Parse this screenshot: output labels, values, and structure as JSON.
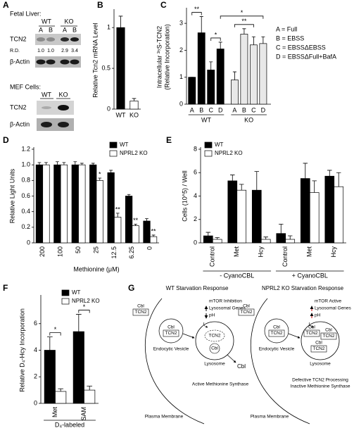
{
  "panel_labels": [
    "A",
    "B",
    "C",
    "D",
    "E",
    "F",
    "G"
  ],
  "panel_a": {
    "fetal_liver": {
      "title": "Fetal Liver:",
      "genotypes": [
        "WT",
        "KO"
      ],
      "lanes": [
        "A",
        "B",
        "A",
        "B"
      ],
      "rows": [
        "TCN2",
        "β-Actin"
      ],
      "rd_label": "R.D.",
      "rd_values": [
        "1.0",
        "1.0",
        "2.9",
        "3.4"
      ]
    },
    "mef": {
      "title": "MEF Cells:",
      "genotypes": [
        "WT",
        "KO"
      ],
      "rows": [
        "TCN2",
        "β-Actin"
      ]
    }
  },
  "chart_data": [
    {
      "type": "bar",
      "ylabel": "Relative Tcn2 mRNA Level",
      "categories": [
        "WT",
        "KO"
      ],
      "values": [
        1,
        0.1
      ],
      "errors": [
        0.14,
        0.03
      ],
      "colors": [
        "#000000",
        "#ffffff"
      ],
      "ylim": [
        0,
        1.2
      ],
      "yticks": [
        0,
        0.5,
        1
      ]
    },
    {
      "type": "grouped_bar",
      "group_by": "series",
      "ylabel": [
        "Intracellular ³⁵S-TCN2",
        "(Relative Incorporation)"
      ],
      "categories": [
        "A",
        "B",
        "C",
        "D"
      ],
      "series": [
        {
          "name": "WT",
          "color": "#000000",
          "values": [
            1,
            2.65,
            1.27,
            2.05
          ],
          "errors": [
            0,
            0.6,
            0.3,
            0.25
          ]
        },
        {
          "name": "KO",
          "color": "#e8e8e8",
          "values": [
            0.9,
            2.6,
            2.2,
            2.25
          ],
          "errors": [
            0.3,
            0.2,
            0.3,
            0.25
          ]
        }
      ],
      "ylim": [
        0,
        3.5
      ],
      "yticks": [
        0,
        1,
        2,
        3
      ],
      "notes": [
        "A = Full",
        "B = EBSS",
        "C = EBSSΔEBSS",
        "D = EBSSΔFull+BafA"
      ],
      "annotations": [
        {
          "text": "**",
          "bars": [
            [
              0,
              0
            ],
            [
              0,
              1
            ]
          ]
        },
        {
          "text": "*",
          "bars": [
            [
              0,
              2
            ],
            [
              0,
              3
            ]
          ]
        },
        {
          "text": "**",
          "bars": [
            [
              1,
              0
            ],
            [
              1,
              2
            ]
          ]
        },
        {
          "text": "*",
          "bars": [
            [
              0,
              3
            ],
            [
              1,
              3
            ]
          ]
        }
      ]
    },
    {
      "type": "grouped_bar",
      "group_by": "category",
      "ylabel": "Relative Light Units",
      "xlabel": "Methionine (μM)",
      "categories": [
        "200",
        "100",
        "50",
        "25",
        "12.5",
        "6.25",
        "0"
      ],
      "series": [
        {
          "name": "WT",
          "color": "#000000",
          "values": [
            1,
            1,
            1,
            1,
            0.9,
            0.6,
            0.28
          ],
          "errors": [
            0.03,
            0.04,
            0.04,
            0.02,
            0.03,
            0.02,
            0.03
          ]
        },
        {
          "name": "NPRL2 KO",
          "color": "#ffffff",
          "values": [
            1,
            1,
            1,
            0.8,
            0.33,
            0.22,
            0.08
          ],
          "errors": [
            0.03,
            0.03,
            0.02,
            0.03,
            0.05,
            0.02,
            0.02
          ]
        }
      ],
      "ylim": [
        0,
        1.2
      ],
      "yticks": [
        0,
        0.2,
        0.4,
        0.6,
        0.8,
        {
          "value": 1,
          "label": "1.0"
        },
        1.2
      ],
      "legend": "upper right",
      "annotations": [
        {
          "text": "*",
          "bars": [
            [
              1,
              3
            ]
          ]
        },
        {
          "text": "**",
          "bars": [
            [
              1,
              4
            ]
          ]
        },
        {
          "text": "**",
          "bars": [
            [
              1,
              5
            ]
          ]
        },
        {
          "text": "**",
          "bars": [
            [
              1,
              6
            ]
          ]
        }
      ]
    },
    {
      "type": "grouped_bar",
      "group_by": "category",
      "ylabel": "Cells (10^5) / Well",
      "categories": [
        "Control",
        "Met",
        "Hcy",
        "Control",
        "Met",
        "Hcy"
      ],
      "groups": [
        "- CyanoCBL",
        "+ CyanoCBL"
      ],
      "series": [
        {
          "name": "WT",
          "color": "#000000",
          "values": [
            0.6,
            5.3,
            4.5,
            0.8,
            5.5,
            5.7
          ],
          "errors": [
            0.3,
            0.5,
            1.6,
            0.8,
            1.3,
            0.5
          ]
        },
        {
          "name": "NPRL2 KO",
          "color": "#ffffff",
          "values": [
            0.3,
            4.5,
            0.3,
            0.3,
            4.3,
            4.8
          ],
          "errors": [
            0.15,
            0.5,
            0.2,
            0.3,
            1.0,
            1.2
          ]
        }
      ],
      "ylim": [
        0,
        8
      ],
      "yticks": [
        0,
        2,
        4,
        6,
        8
      ],
      "legend": "upper left"
    },
    {
      "type": "grouped_bar",
      "group_by": "category",
      "ylabel": "Relative D₄-Hcy Incorporation",
      "categories": [
        "Met",
        "SAM"
      ],
      "groups": [
        "D₄-labeled"
      ],
      "series": [
        {
          "name": "WT",
          "color": "#000000",
          "values": [
            4,
            5.4
          ],
          "errors": [
            1,
            1.3
          ]
        },
        {
          "name": "NPRL2 KO",
          "color": "#ffffff",
          "values": [
            0.9,
            1
          ],
          "errors": [
            0.2,
            0.3
          ]
        }
      ],
      "ylim": [
        0,
        8
      ],
      "yticks": [
        0,
        2,
        4,
        6
      ],
      "legend": "upper right",
      "annotations": [
        {
          "text": "*",
          "bars": [
            [
              0,
              0
            ],
            [
              1,
              0
            ]
          ]
        },
        {
          "text": "*",
          "bars": [
            [
              0,
              1
            ],
            [
              1,
              1
            ]
          ]
        }
      ]
    }
  ],
  "panel_g": {
    "wt": {
      "title": "WT Starvation Response",
      "signals": [
        "mTOR Inhibition",
        "Lysosomal Genes",
        "pH"
      ],
      "outside": [
        "Cbl",
        "TCN2"
      ],
      "vesicle": [
        "Cbl",
        "TCN2"
      ],
      "vesicle_label": "Endocytic Vesicle",
      "lysosome_contents": [
        "TCN2",
        "Cbl"
      ],
      "lysosome_label": "Lysosome",
      "released": "Cbl",
      "outcome": [
        "Active Methionine Synthase"
      ],
      "membrane": "Plasma Membrane"
    },
    "nprl2_ko": {
      "title": "NPRL2 KO Starvation Response",
      "signals": [
        "mTOR Active",
        "Lysosomal Genes",
        "pH"
      ],
      "outside": [
        "Cbl",
        "TCN2"
      ],
      "vesicle": [
        "Cbl",
        "TCN2"
      ],
      "vesicle_label": "Endocytic Vesicle",
      "lysosome_contents": [
        [
          "Cbl",
          "TCN2"
        ],
        [
          "Cbl",
          "TCN2"
        ],
        [
          "Cbl",
          "TCN2"
        ]
      ],
      "lysosome_label": "Lysosome",
      "outcome": [
        "Defective TCN2 Processing",
        "Inactive Methionine Synthase"
      ],
      "membrane": "Plasma Membrane"
    }
  }
}
